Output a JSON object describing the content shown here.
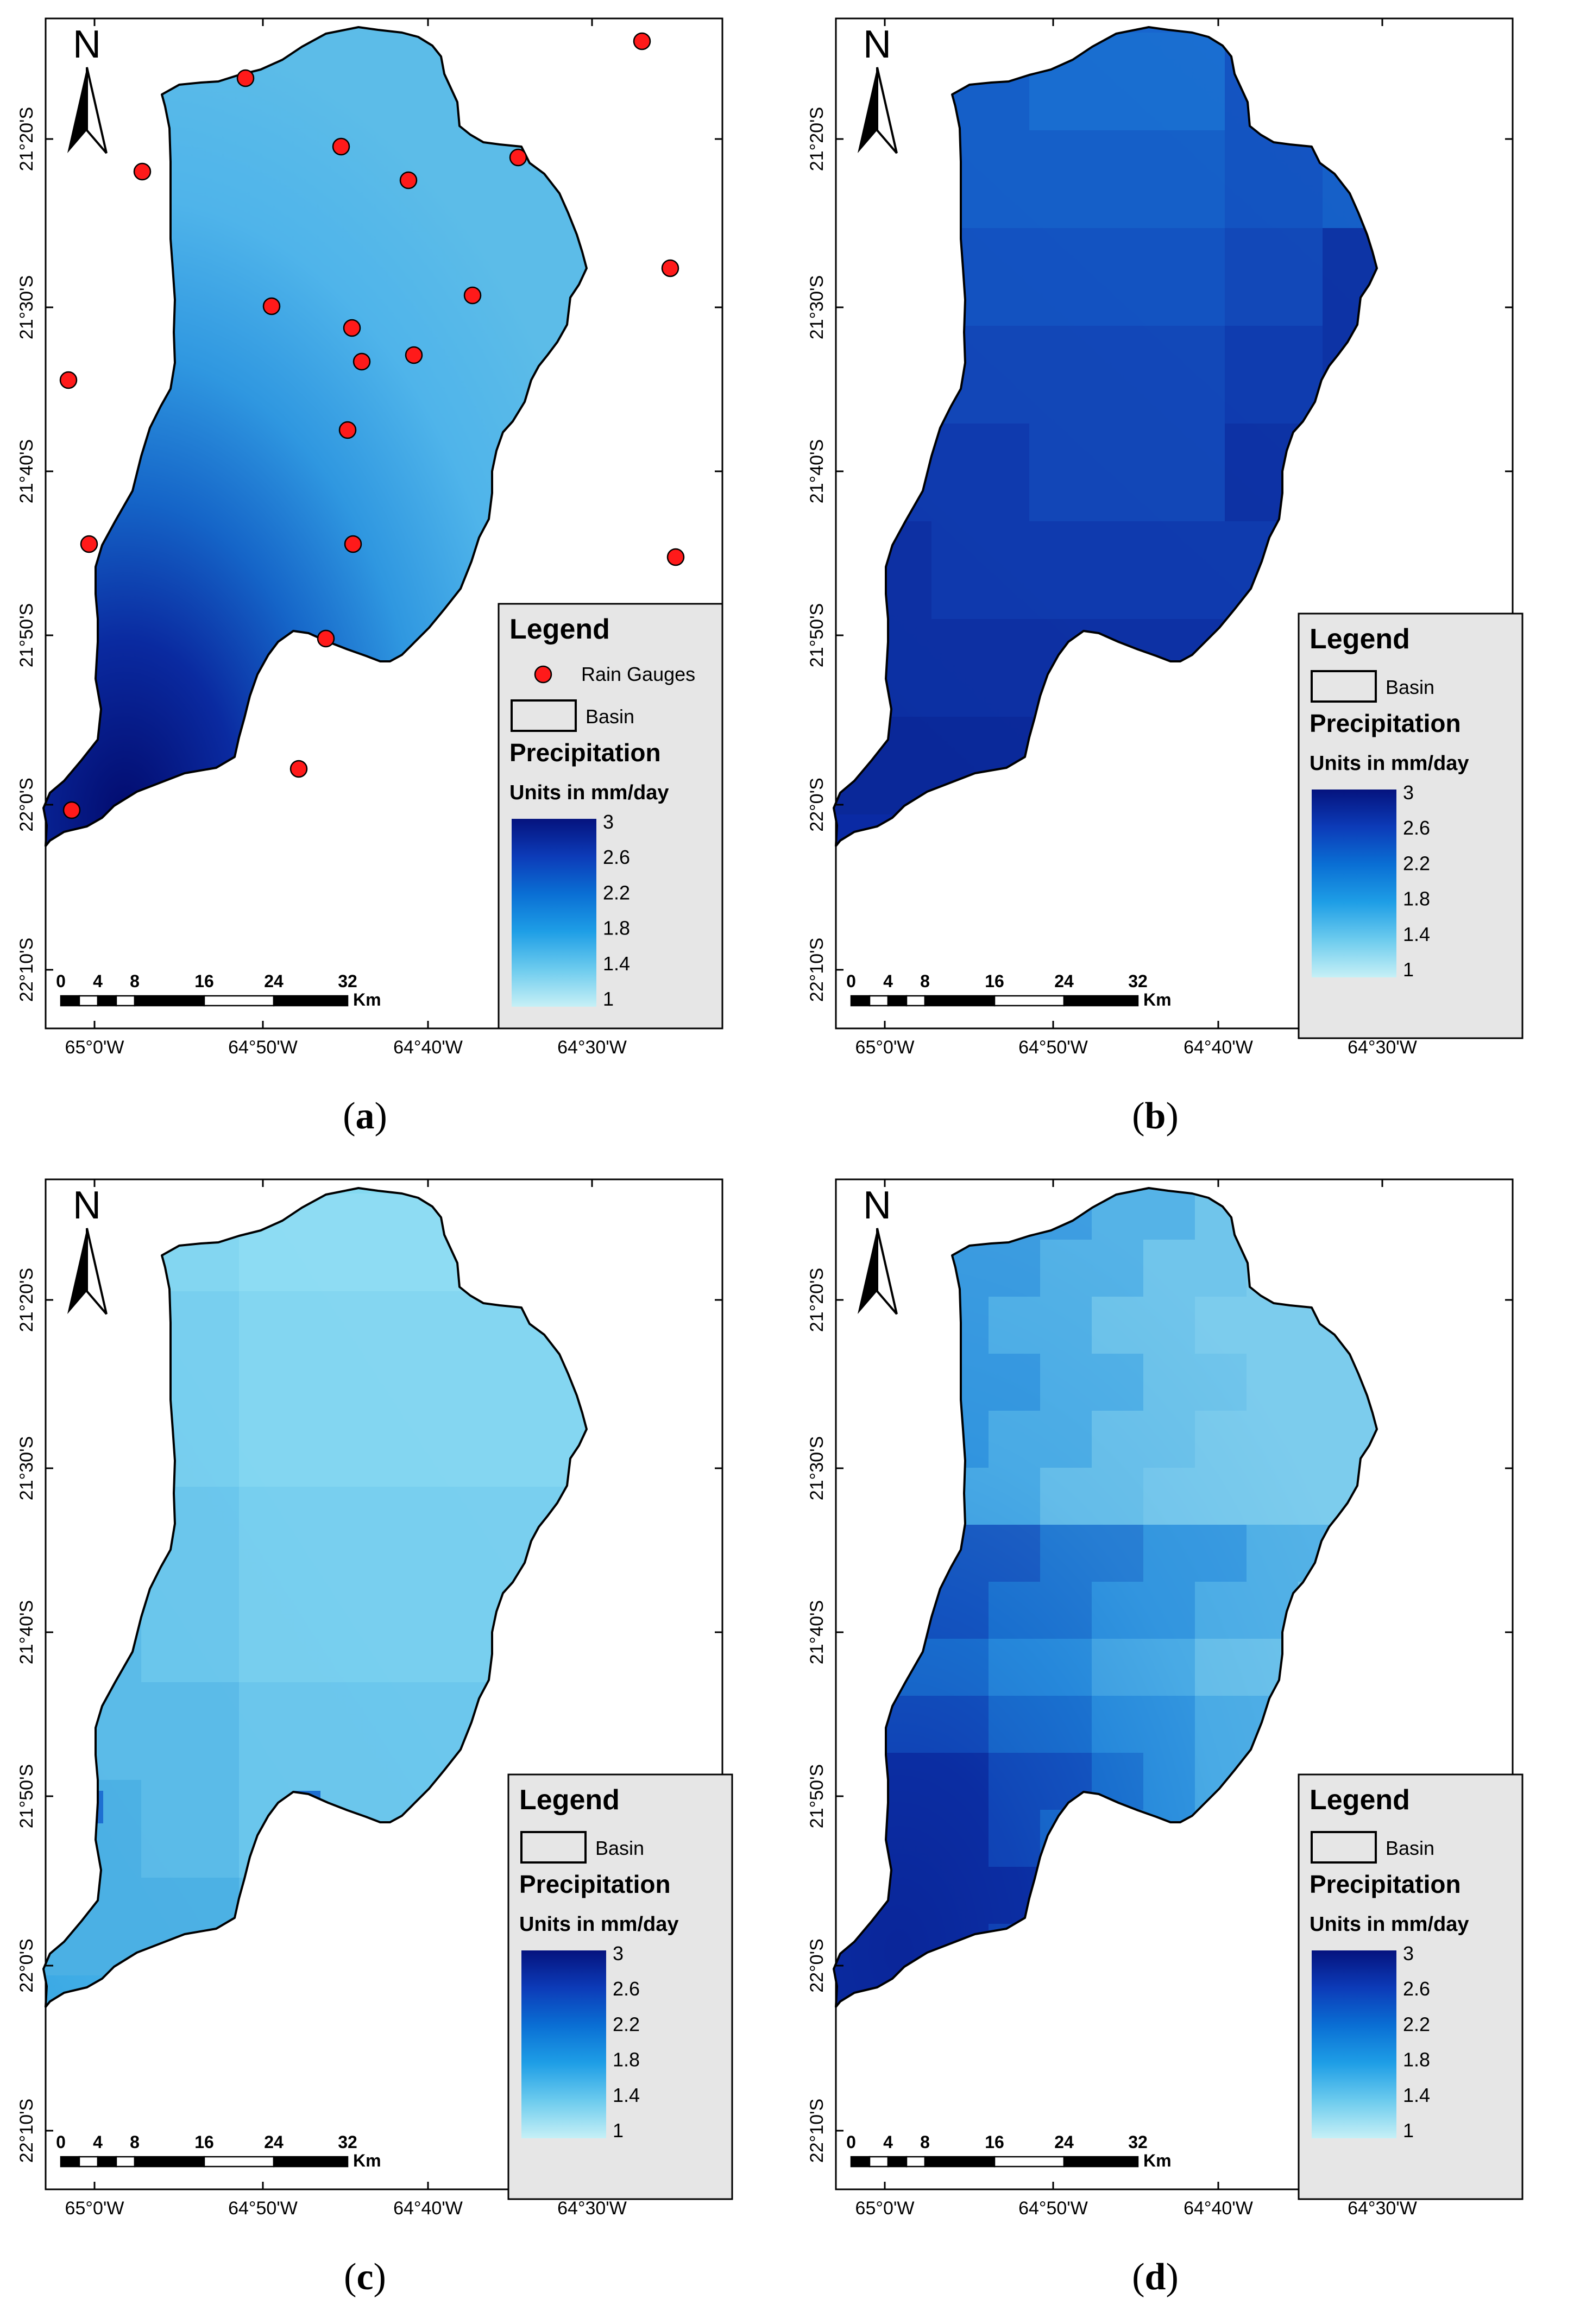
{
  "panels": [
    {
      "id": "a",
      "caption": "(a)",
      "letter": "a",
      "has_gauges": true,
      "field": "idw"
    },
    {
      "id": "b",
      "caption": "(b)",
      "letter": "b",
      "has_gauges": false,
      "field": "blocks"
    },
    {
      "id": "c",
      "caption": "(c)",
      "letter": "c",
      "has_gauges": false,
      "field": "light"
    },
    {
      "id": "d",
      "caption": "(d)",
      "letter": "d",
      "has_gauges": false,
      "field": "mosaic"
    }
  ],
  "map": {
    "north_label": "N",
    "lat_labels": [
      "21°20'S",
      "21°30'S",
      "21°40'S",
      "21°50'S",
      "22°0'S",
      "22°10'S"
    ],
    "lon_labels": [
      "65°0'W",
      "64°50'W",
      "64°40'W",
      "64°30'W"
    ],
    "scale": {
      "ticks": [
        "0",
        "4",
        "8",
        "16",
        "24",
        "32"
      ],
      "unit": "Km"
    }
  },
  "legend": {
    "title": "Legend",
    "rain_gauges": "Rain Gauges",
    "basin": "Basin",
    "precip_title": "Precipitation",
    "units": "Units in mm/day",
    "values": [
      "3",
      "2.6",
      "2.2",
      "1.8",
      "1.4",
      "1"
    ],
    "color_stops": [
      "#05137e",
      "#0c3bb8",
      "#0a6fd4",
      "#1e9ee6",
      "#6ccbee",
      "#c6f0f6"
    ]
  },
  "colors": {
    "gauge": "#ff1a1a",
    "outline": "#000000",
    "frame": "#000000",
    "legend_bg": "#e6e6e6"
  }
}
